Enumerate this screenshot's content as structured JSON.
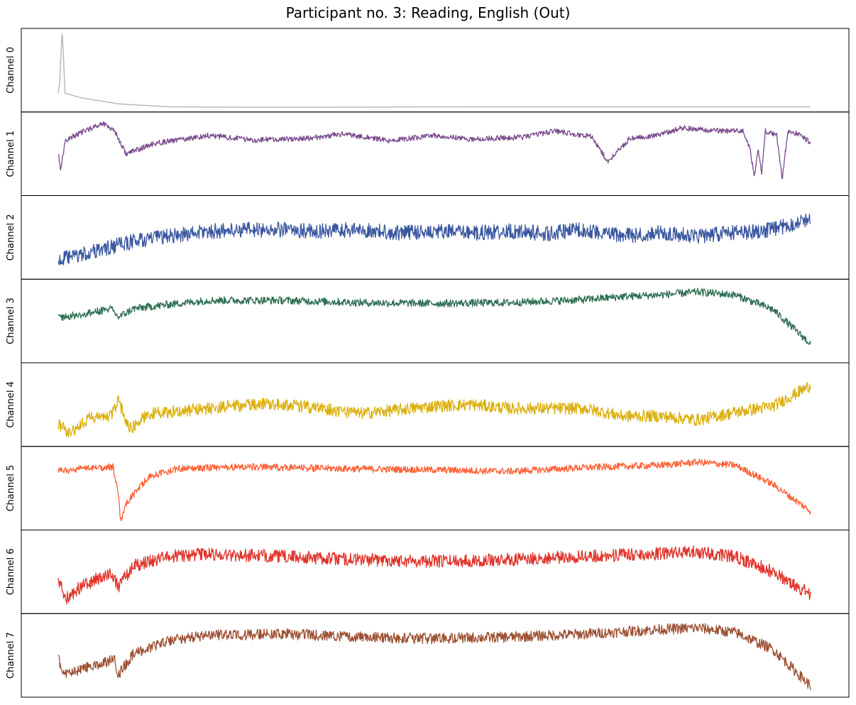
{
  "chart_data": {
    "type": "line",
    "title": "Participant no. 3: Reading, English (Out)",
    "xlabel": "",
    "ylabel": "",
    "grid": false,
    "legend": "none",
    "x_range": [
      0,
      1
    ],
    "channels": [
      {
        "label": "Channel 0",
        "color": "#b2b6ba",
        "noise": 0.0,
        "ylim": [
          0,
          1
        ],
        "keypoints": [
          [
            0,
            0.2
          ],
          [
            0.002,
            0.35
          ],
          [
            0.004,
            0.75
          ],
          [
            0.005,
            0.97
          ],
          [
            0.006,
            0.9
          ],
          [
            0.008,
            0.45
          ],
          [
            0.009,
            0.2
          ],
          [
            0.03,
            0.14
          ],
          [
            0.08,
            0.06
          ],
          [
            0.15,
            0.02
          ],
          [
            0.3,
            0.015
          ],
          [
            0.5,
            0.02
          ],
          [
            0.7,
            0.022
          ],
          [
            0.9,
            0.022
          ],
          [
            1,
            0.022
          ]
        ]
      },
      {
        "label": "Channel 1",
        "color": "#7a4b8e",
        "noise": 0.035,
        "ylim": [
          0,
          1
        ],
        "keypoints": [
          [
            0,
            0.52
          ],
          [
            0.003,
            0.3
          ],
          [
            0.01,
            0.68
          ],
          [
            0.04,
            0.82
          ],
          [
            0.06,
            0.9
          ],
          [
            0.075,
            0.8
          ],
          [
            0.09,
            0.5
          ],
          [
            0.13,
            0.64
          ],
          [
            0.2,
            0.74
          ],
          [
            0.26,
            0.68
          ],
          [
            0.33,
            0.7
          ],
          [
            0.38,
            0.76
          ],
          [
            0.44,
            0.67
          ],
          [
            0.5,
            0.74
          ],
          [
            0.55,
            0.69
          ],
          [
            0.62,
            0.72
          ],
          [
            0.66,
            0.8
          ],
          [
            0.71,
            0.72
          ],
          [
            0.73,
            0.4
          ],
          [
            0.76,
            0.7
          ],
          [
            0.8,
            0.75
          ],
          [
            0.83,
            0.84
          ],
          [
            0.87,
            0.8
          ],
          [
            0.91,
            0.8
          ],
          [
            0.92,
            0.55
          ],
          [
            0.925,
            0.2
          ],
          [
            0.93,
            0.55
          ],
          [
            0.935,
            0.25
          ],
          [
            0.94,
            0.8
          ],
          [
            0.955,
            0.74
          ],
          [
            0.96,
            0.35
          ],
          [
            0.962,
            0.15
          ],
          [
            0.97,
            0.8
          ],
          [
            0.985,
            0.75
          ],
          [
            1,
            0.65
          ]
        ]
      },
      {
        "label": "Channel 2",
        "color": "#3a57a0",
        "noise": 0.1,
        "ylim": [
          0,
          1
        ],
        "keypoints": [
          [
            0,
            0.2
          ],
          [
            0.05,
            0.32
          ],
          [
            0.1,
            0.45
          ],
          [
            0.15,
            0.52
          ],
          [
            0.2,
            0.58
          ],
          [
            0.25,
            0.6
          ],
          [
            0.3,
            0.6
          ],
          [
            0.35,
            0.58
          ],
          [
            0.4,
            0.6
          ],
          [
            0.45,
            0.56
          ],
          [
            0.5,
            0.58
          ],
          [
            0.55,
            0.56
          ],
          [
            0.6,
            0.58
          ],
          [
            0.65,
            0.55
          ],
          [
            0.7,
            0.6
          ],
          [
            0.75,
            0.52
          ],
          [
            0.8,
            0.56
          ],
          [
            0.85,
            0.52
          ],
          [
            0.9,
            0.56
          ],
          [
            0.95,
            0.6
          ],
          [
            1,
            0.75
          ]
        ]
      },
      {
        "label": "Channel 3",
        "color": "#2e6e52",
        "noise": 0.05,
        "ylim": [
          0,
          1
        ],
        "keypoints": [
          [
            0,
            0.55
          ],
          [
            0.03,
            0.58
          ],
          [
            0.07,
            0.66
          ],
          [
            0.08,
            0.55
          ],
          [
            0.1,
            0.66
          ],
          [
            0.15,
            0.72
          ],
          [
            0.2,
            0.77
          ],
          [
            0.3,
            0.77
          ],
          [
            0.4,
            0.74
          ],
          [
            0.5,
            0.73
          ],
          [
            0.6,
            0.74
          ],
          [
            0.7,
            0.78
          ],
          [
            0.75,
            0.82
          ],
          [
            0.8,
            0.84
          ],
          [
            0.85,
            0.88
          ],
          [
            0.9,
            0.84
          ],
          [
            0.95,
            0.65
          ],
          [
            1,
            0.2
          ]
        ]
      },
      {
        "label": "Channel 4",
        "color": "#dbb00e",
        "noise": 0.08,
        "ylim": [
          0,
          1
        ],
        "keypoints": [
          [
            0,
            0.25
          ],
          [
            0.015,
            0.12
          ],
          [
            0.04,
            0.32
          ],
          [
            0.07,
            0.35
          ],
          [
            0.08,
            0.55
          ],
          [
            0.095,
            0.18
          ],
          [
            0.12,
            0.38
          ],
          [
            0.2,
            0.45
          ],
          [
            0.28,
            0.52
          ],
          [
            0.35,
            0.45
          ],
          [
            0.4,
            0.38
          ],
          [
            0.5,
            0.48
          ],
          [
            0.55,
            0.5
          ],
          [
            0.6,
            0.45
          ],
          [
            0.7,
            0.45
          ],
          [
            0.75,
            0.35
          ],
          [
            0.8,
            0.35
          ],
          [
            0.85,
            0.3
          ],
          [
            0.9,
            0.4
          ],
          [
            0.95,
            0.48
          ],
          [
            1,
            0.75
          ]
        ]
      },
      {
        "label": "Channel 5",
        "color": "#ff6034",
        "noise": 0.045,
        "ylim": [
          0,
          1
        ],
        "keypoints": [
          [
            0,
            0.72
          ],
          [
            0.04,
            0.76
          ],
          [
            0.073,
            0.78
          ],
          [
            0.08,
            0.4
          ],
          [
            0.083,
            0.05
          ],
          [
            0.09,
            0.3
          ],
          [
            0.12,
            0.65
          ],
          [
            0.16,
            0.76
          ],
          [
            0.25,
            0.78
          ],
          [
            0.35,
            0.76
          ],
          [
            0.5,
            0.74
          ],
          [
            0.6,
            0.72
          ],
          [
            0.7,
            0.77
          ],
          [
            0.8,
            0.8
          ],
          [
            0.85,
            0.84
          ],
          [
            0.9,
            0.8
          ],
          [
            0.95,
            0.55
          ],
          [
            1,
            0.2
          ]
        ]
      },
      {
        "label": "Channel 6",
        "color": "#e0342b",
        "noise": 0.085,
        "ylim": [
          0,
          1
        ],
        "keypoints": [
          [
            0,
            0.4
          ],
          [
            0.01,
            0.15
          ],
          [
            0.03,
            0.3
          ],
          [
            0.07,
            0.5
          ],
          [
            0.08,
            0.3
          ],
          [
            0.1,
            0.58
          ],
          [
            0.15,
            0.7
          ],
          [
            0.2,
            0.73
          ],
          [
            0.3,
            0.7
          ],
          [
            0.4,
            0.66
          ],
          [
            0.5,
            0.64
          ],
          [
            0.6,
            0.66
          ],
          [
            0.7,
            0.7
          ],
          [
            0.8,
            0.74
          ],
          [
            0.85,
            0.76
          ],
          [
            0.9,
            0.7
          ],
          [
            0.95,
            0.5
          ],
          [
            1,
            0.2
          ]
        ]
      },
      {
        "label": "Channel 7",
        "color": "#9c4f31",
        "noise": 0.07,
        "ylim": [
          0,
          1
        ],
        "keypoints": [
          [
            0,
            0.45
          ],
          [
            0.01,
            0.25
          ],
          [
            0.04,
            0.35
          ],
          [
            0.075,
            0.45
          ],
          [
            0.08,
            0.25
          ],
          [
            0.1,
            0.52
          ],
          [
            0.15,
            0.7
          ],
          [
            0.2,
            0.76
          ],
          [
            0.3,
            0.78
          ],
          [
            0.4,
            0.74
          ],
          [
            0.5,
            0.72
          ],
          [
            0.6,
            0.74
          ],
          [
            0.7,
            0.78
          ],
          [
            0.8,
            0.84
          ],
          [
            0.85,
            0.86
          ],
          [
            0.9,
            0.8
          ],
          [
            0.95,
            0.58
          ],
          [
            1,
            0.1
          ]
        ]
      }
    ]
  }
}
